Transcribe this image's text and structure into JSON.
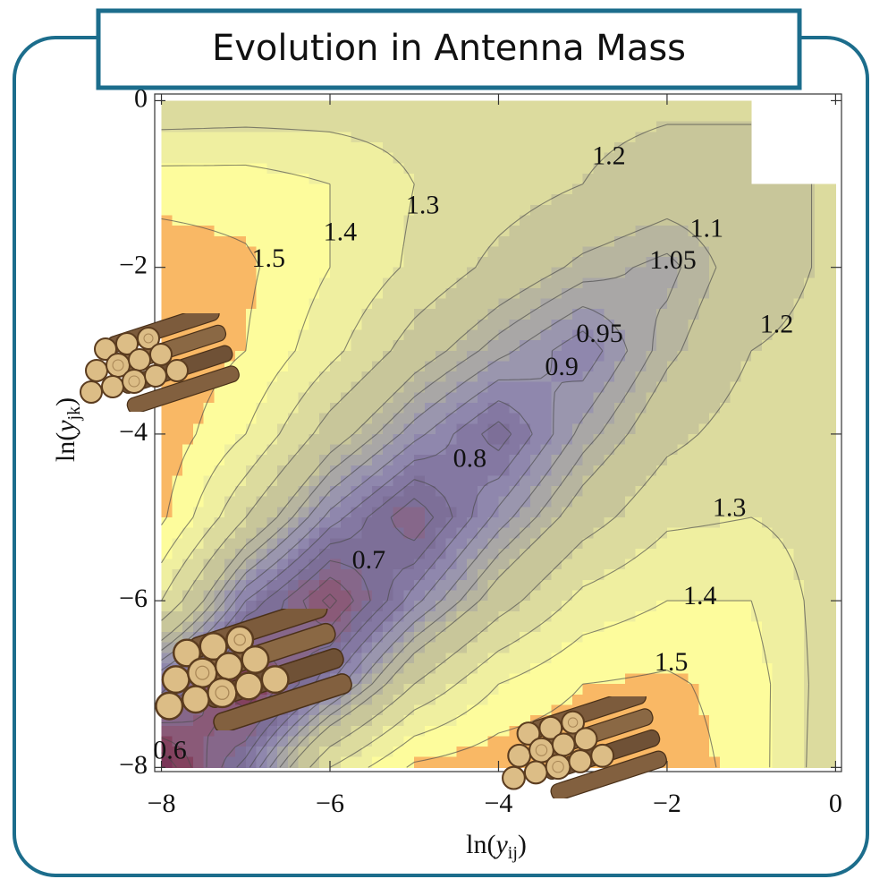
{
  "chart_data": {
    "type": "contour",
    "title": "Evolution in Antenna Mass",
    "xlabel": {
      "open": "ln(",
      "var": "y",
      "sub": "ij",
      "close": ")"
    },
    "ylabel": {
      "open": "ln(",
      "var": "y",
      "sub": "jk",
      "close": ")"
    },
    "xlim": [
      -8.08,
      0.07
    ],
    "ylim": [
      -8.05,
      0.08
    ],
    "xticks": [
      {
        "value": -8,
        "label": "−8"
      },
      {
        "value": -6,
        "label": "−6"
      },
      {
        "value": -4,
        "label": "−4"
      },
      {
        "value": -2,
        "label": "−2"
      },
      0
    ],
    "yticks": [
      {
        "value": -8,
        "label": "−8"
      },
      {
        "value": -6,
        "label": "−6"
      },
      {
        "value": -4,
        "label": "−4"
      },
      {
        "value": -2,
        "label": "−2"
      },
      0
    ],
    "x": [
      -8,
      -7,
      -6,
      -5,
      -4,
      -3,
      -2,
      -1,
      0
    ],
    "y": [
      0,
      -1,
      -2,
      -3,
      -4,
      -5,
      -6,
      -7,
      -8
    ],
    "z": [
      [
        1.22,
        1.23,
        1.24,
        1.25,
        1.24,
        1.23,
        1.22,
        1.22,
        null
      ],
      [
        1.45,
        1.45,
        1.4,
        1.3,
        1.25,
        1.2,
        1.15,
        1.15,
        1.22
      ],
      [
        1.57,
        1.52,
        1.4,
        1.28,
        1.17,
        1.08,
        1.03,
        1.15,
        1.22
      ],
      [
        1.58,
        1.5,
        1.33,
        1.15,
        1.02,
        0.91,
        1.08,
        1.2,
        1.23
      ],
      [
        1.57,
        1.4,
        1.15,
        0.97,
        0.82,
        1.02,
        1.17,
        1.25,
        1.24
      ],
      [
        1.52,
        1.2,
        0.93,
        0.75,
        0.97,
        1.15,
        1.28,
        1.3,
        1.25
      ],
      [
        1.3,
        0.9,
        0.68,
        0.93,
        1.15,
        1.33,
        1.4,
        1.4,
        1.24
      ],
      [
        0.88,
        0.63,
        0.9,
        1.2,
        1.4,
        1.5,
        1.52,
        1.45,
        1.23
      ],
      [
        0.6,
        0.88,
        1.3,
        1.52,
        1.57,
        1.58,
        1.57,
        1.45,
        1.22
      ]
    ],
    "levels": [
      0.6,
      0.65,
      0.7,
      0.75,
      0.8,
      0.85,
      0.9,
      0.95,
      1.0,
      1.05,
      1.1,
      1.2,
      1.3,
      1.4,
      1.5
    ],
    "colors": [
      "#6e2a4e",
      "#7a3558",
      "#83425f",
      "#8a5a78",
      "#86678a",
      "#7d6f98",
      "#8478a2",
      "#8f87ad",
      "#9a96ae",
      "#a9a7a6",
      "#b7b59f",
      "#c8c69a",
      "#dcdb9e",
      "#efefa0",
      "#fdfc9c",
      "#f9b865"
    ],
    "contour_labels": [
      {
        "level": 1.2,
        "x": -2.69,
        "y": -0.69
      },
      {
        "level": 1.3,
        "x": -4.9,
        "y": -1.28
      },
      {
        "level": 1.4,
        "x": -5.88,
        "y": -1.6
      },
      {
        "level": 1.5,
        "x": -6.73,
        "y": -1.92
      },
      {
        "level": 1.1,
        "x": -1.53,
        "y": -1.56
      },
      {
        "level": 1.05,
        "x": -1.93,
        "y": -1.94
      },
      {
        "level": 1.2,
        "x": -0.7,
        "y": -2.71
      },
      {
        "level": 0.95,
        "x": -2.8,
        "y": -2.82
      },
      {
        "level": 0.9,
        "x": -3.25,
        "y": -3.22
      },
      {
        "level": 0.8,
        "x": -4.34,
        "y": -4.32
      },
      {
        "level": 1.3,
        "x": -1.26,
        "y": -4.91
      },
      {
        "level": 0.7,
        "x": -5.54,
        "y": -5.54
      },
      {
        "level": 1.4,
        "x": -1.61,
        "y": -5.97
      },
      {
        "level": 1.5,
        "x": -1.95,
        "y": -6.76
      },
      {
        "level": 0.6,
        "x": -7.9,
        "y": -7.82
      }
    ]
  }
}
